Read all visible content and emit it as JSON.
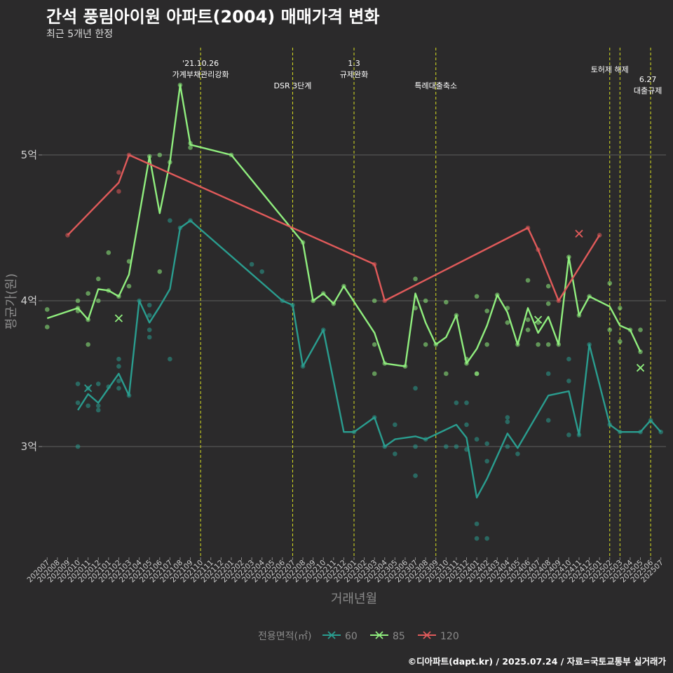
{
  "chart_data": {
    "type": "line",
    "title": "간석 풍림아이원 아파트(2004) 매매가격 변화",
    "subtitle": "최근 5개년 한정",
    "caption": "©디아파트(dapt.kr) / 2025.07.24 / 자료=국토교통부 실거래가",
    "xlabel": "거래년월",
    "ylabel": "평균가(원)",
    "x_categories": [
      "202007",
      "202008",
      "202009",
      "202010",
      "202011",
      "202012",
      "202101",
      "202102",
      "202103",
      "202104",
      "202105",
      "202106",
      "202107",
      "202108",
      "202109",
      "202110",
      "202111",
      "202112",
      "202201",
      "202202",
      "202203",
      "202204",
      "202205",
      "202206",
      "202207",
      "202208",
      "202209",
      "202210",
      "202211",
      "202212",
      "202301",
      "202302",
      "202303",
      "202304",
      "202305",
      "202306",
      "202307",
      "202308",
      "202309",
      "202310",
      "202311",
      "202312",
      "202401",
      "202402",
      "202403",
      "202404",
      "202405",
      "202406",
      "202407",
      "202408",
      "202409",
      "202410",
      "202411",
      "202412",
      "202501",
      "202502",
      "202503",
      "202504",
      "202505",
      "202506",
      "202507"
    ],
    "y_ticks": [
      {
        "value": 3.0,
        "label": "3억"
      },
      {
        "value": 4.0,
        "label": "4억"
      },
      {
        "value": 5.0,
        "label": "5억"
      }
    ],
    "ylim": [
      2.25,
      5.55
    ],
    "grid": "horizontal",
    "legend": {
      "title": "전용면적(㎡)",
      "position": "bottom"
    },
    "series": [
      {
        "name": "60",
        "color": "#2a9d8f",
        "line": [
          [
            "202010",
            3.25
          ],
          [
            "202011",
            3.36
          ],
          [
            "202012",
            3.3
          ],
          [
            "202101",
            3.4
          ],
          [
            "202102",
            3.5
          ],
          [
            "202103",
            3.35
          ],
          [
            "202104",
            4.0
          ],
          [
            "202105",
            3.85
          ],
          [
            "202106",
            3.96
          ],
          [
            "202107",
            4.08
          ],
          [
            "202108",
            4.5
          ],
          [
            "202109",
            4.55
          ],
          [
            "202206",
            4.0
          ],
          [
            "202207",
            3.97
          ],
          [
            "202208",
            3.55
          ],
          [
            "202210",
            3.8
          ],
          [
            "202212",
            3.1
          ],
          [
            "202301",
            3.1
          ],
          [
            "202303",
            3.2
          ],
          [
            "202304",
            3.0
          ],
          [
            "202305",
            3.05
          ],
          [
            "202307",
            3.07
          ],
          [
            "202308",
            3.05
          ],
          [
            "202311",
            3.15
          ],
          [
            "202312",
            3.06
          ],
          [
            "202401",
            2.65
          ],
          [
            "202402",
            2.78
          ],
          [
            "202404",
            3.09
          ],
          [
            "202405",
            2.99
          ],
          [
            "202408",
            3.35
          ],
          [
            "202410",
            3.38
          ],
          [
            "202411",
            3.08
          ],
          [
            "202412",
            3.7
          ],
          [
            "202502",
            3.15
          ],
          [
            "202503",
            3.1
          ],
          [
            "202505",
            3.1
          ],
          [
            "202506",
            3.18
          ],
          [
            "202507",
            3.1
          ]
        ],
        "points": [
          [
            "202010",
            3.43
          ],
          [
            "202010",
            3.3
          ],
          [
            "202010",
            3.0
          ],
          [
            "202011",
            3.28
          ],
          [
            "202011",
            3.4
          ],
          [
            "202012",
            3.43
          ],
          [
            "202012",
            3.25
          ],
          [
            "202012",
            3.28
          ],
          [
            "202101",
            3.41
          ],
          [
            "202102",
            3.6
          ],
          [
            "202102",
            3.55
          ],
          [
            "202102",
            3.45
          ],
          [
            "202102",
            3.4
          ],
          [
            "202103",
            3.35
          ],
          [
            "202104",
            4.0
          ],
          [
            "202105",
            3.8
          ],
          [
            "202105",
            3.75
          ],
          [
            "202105",
            3.97
          ],
          [
            "202105",
            3.9
          ],
          [
            "202107",
            4.55
          ],
          [
            "202107",
            3.6
          ],
          [
            "202108",
            4.5
          ],
          [
            "202109",
            4.55
          ],
          [
            "202203",
            4.25
          ],
          [
            "202204",
            4.2
          ],
          [
            "202206",
            4.0
          ],
          [
            "202207",
            3.97
          ],
          [
            "202208",
            3.55
          ],
          [
            "202210",
            3.8
          ],
          [
            "202301",
            3.1
          ],
          [
            "202303",
            3.2
          ],
          [
            "202304",
            3.0
          ],
          [
            "202305",
            3.15
          ],
          [
            "202305",
            2.95
          ],
          [
            "202307",
            3.4
          ],
          [
            "202307",
            3.0
          ],
          [
            "202307",
            2.8
          ],
          [
            "202308",
            3.05
          ],
          [
            "202310",
            3.0
          ],
          [
            "202311",
            3.3
          ],
          [
            "202311",
            3.0
          ],
          [
            "202312",
            3.3
          ],
          [
            "202312",
            3.15
          ],
          [
            "202312",
            2.98
          ],
          [
            "202401",
            3.05
          ],
          [
            "202401",
            2.47
          ],
          [
            "202401",
            2.37
          ],
          [
            "202402",
            3.02
          ],
          [
            "202402",
            2.9
          ],
          [
            "202402",
            2.37
          ],
          [
            "202404",
            3.2
          ],
          [
            "202404",
            3.17
          ],
          [
            "202404",
            3.0
          ],
          [
            "202405",
            2.95
          ],
          [
            "202408",
            3.5
          ],
          [
            "202408",
            3.18
          ],
          [
            "202410",
            3.6
          ],
          [
            "202410",
            3.45
          ],
          [
            "202410",
            3.08
          ],
          [
            "202411",
            3.08
          ],
          [
            "202412",
            3.7
          ],
          [
            "202502",
            3.15
          ],
          [
            "202503",
            3.1
          ],
          [
            "202505",
            3.1
          ],
          [
            "202506",
            3.18
          ],
          [
            "202507",
            3.1
          ]
        ],
        "crosses": [
          [
            "202011",
            3.4
          ]
        ]
      },
      {
        "name": "85",
        "color": "#90ee7e",
        "line": [
          [
            "202007",
            3.88
          ],
          [
            "202010",
            3.95
          ],
          [
            "202011",
            3.87
          ],
          [
            "202012",
            4.08
          ],
          [
            "202101",
            4.07
          ],
          [
            "202102",
            4.03
          ],
          [
            "202103",
            4.18
          ],
          [
            "202105",
            4.99
          ],
          [
            "202106",
            4.6
          ],
          [
            "202107",
            4.95
          ],
          [
            "202108",
            5.48
          ],
          [
            "202109",
            5.07
          ],
          [
            "202201",
            5.0
          ],
          [
            "202208",
            4.4
          ],
          [
            "202209",
            4.0
          ],
          [
            "202210",
            4.05
          ],
          [
            "202211",
            3.98
          ],
          [
            "202212",
            4.1
          ],
          [
            "202303",
            3.78
          ],
          [
            "202304",
            3.57
          ],
          [
            "202306",
            3.55
          ],
          [
            "202307",
            4.05
          ],
          [
            "202308",
            3.85
          ],
          [
            "202309",
            3.7
          ],
          [
            "202310",
            3.75
          ],
          [
            "202311",
            3.9
          ],
          [
            "202312",
            3.57
          ],
          [
            "202401",
            3.67
          ],
          [
            "202402",
            3.83
          ],
          [
            "202403",
            4.04
          ],
          [
            "202404",
            3.92
          ],
          [
            "202405",
            3.7
          ],
          [
            "202406",
            3.95
          ],
          [
            "202407",
            3.78
          ],
          [
            "202408",
            3.89
          ],
          [
            "202409",
            3.7
          ],
          [
            "202410",
            4.3
          ],
          [
            "202411",
            3.9
          ],
          [
            "202412",
            4.03
          ],
          [
            "202502",
            3.96
          ],
          [
            "202503",
            3.83
          ],
          [
            "202504",
            3.8
          ],
          [
            "202505",
            3.65
          ]
        ],
        "points": [
          [
            "202007",
            3.94
          ],
          [
            "202007",
            3.82
          ],
          [
            "202010",
            3.95
          ],
          [
            "202010",
            4.0
          ],
          [
            "202010",
            3.93
          ],
          [
            "202011",
            3.7
          ],
          [
            "202011",
            3.87
          ],
          [
            "202011",
            4.05
          ],
          [
            "202012",
            4.15
          ],
          [
            "202012",
            4.0
          ],
          [
            "202101",
            4.33
          ],
          [
            "202101",
            4.07
          ],
          [
            "202102",
            4.03
          ],
          [
            "202103",
            4.27
          ],
          [
            "202103",
            4.1
          ],
          [
            "202105",
            4.99
          ],
          [
            "202106",
            5.0
          ],
          [
            "202106",
            4.2
          ],
          [
            "202107",
            4.95
          ],
          [
            "202108",
            5.48
          ],
          [
            "202109",
            5.08
          ],
          [
            "202109",
            5.05
          ],
          [
            "202201",
            5.0
          ],
          [
            "202208",
            4.4
          ],
          [
            "202209",
            4.0
          ],
          [
            "202210",
            4.05
          ],
          [
            "202211",
            3.98
          ],
          [
            "202212",
            4.1
          ],
          [
            "202303",
            4.0
          ],
          [
            "202303",
            3.7
          ],
          [
            "202303",
            3.5
          ],
          [
            "202304",
            3.57
          ],
          [
            "202306",
            3.55
          ],
          [
            "202307",
            4.15
          ],
          [
            "202307",
            3.95
          ],
          [
            "202308",
            4.0
          ],
          [
            "202308",
            3.7
          ],
          [
            "202309",
            3.7
          ],
          [
            "202310",
            3.99
          ],
          [
            "202310",
            3.5
          ],
          [
            "202311",
            3.9
          ],
          [
            "202312",
            3.6
          ],
          [
            "202312",
            3.57
          ],
          [
            "202401",
            4.03
          ],
          [
            "202401",
            3.5
          ],
          [
            "202401",
            3.5
          ],
          [
            "202402",
            3.93
          ],
          [
            "202402",
            3.7
          ],
          [
            "202403",
            4.04
          ],
          [
            "202404",
            3.95
          ],
          [
            "202404",
            3.85
          ],
          [
            "202405",
            3.7
          ],
          [
            "202406",
            4.14
          ],
          [
            "202406",
            3.8
          ],
          [
            "202406",
            3.87
          ],
          [
            "202407",
            3.85
          ],
          [
            "202407",
            3.7
          ],
          [
            "202408",
            4.1
          ],
          [
            "202408",
            3.98
          ],
          [
            "202408",
            3.7
          ],
          [
            "202409",
            3.7
          ],
          [
            "202410",
            4.3
          ],
          [
            "202411",
            3.9
          ],
          [
            "202412",
            4.03
          ],
          [
            "202502",
            4.12
          ],
          [
            "202502",
            3.8
          ],
          [
            "202503",
            3.95
          ],
          [
            "202503",
            3.72
          ],
          [
            "202504",
            3.8
          ],
          [
            "202505",
            3.8
          ],
          [
            "202505",
            3.65
          ]
        ],
        "crosses": [
          [
            "202102",
            3.88
          ],
          [
            "202407",
            3.87
          ],
          [
            "202505",
            3.54
          ]
        ]
      },
      {
        "name": "120",
        "color": "#e05a5a",
        "line": [
          [
            "202009",
            4.45
          ],
          [
            "202102",
            4.81
          ],
          [
            "202103",
            5.0
          ],
          [
            "202303",
            4.25
          ],
          [
            "202304",
            4.0
          ],
          [
            "202406",
            4.5
          ],
          [
            "202407",
            4.35
          ],
          [
            "202409",
            4.0
          ],
          [
            "202501",
            4.45
          ]
        ],
        "points": [
          [
            "202009",
            4.45
          ],
          [
            "202102",
            4.88
          ],
          [
            "202102",
            4.75
          ],
          [
            "202103",
            5.0
          ],
          [
            "202303",
            4.25
          ],
          [
            "202304",
            4.0
          ],
          [
            "202406",
            4.5
          ],
          [
            "202407",
            4.35
          ],
          [
            "202409",
            4.0
          ],
          [
            "202501",
            4.45
          ]
        ],
        "crosses": [
          [
            "202411",
            4.46
          ]
        ]
      }
    ],
    "annotations": [
      {
        "x": "202110",
        "lines": [
          "'21.10.26",
          "가계부채관리강화"
        ]
      },
      {
        "x": "202207",
        "lines": [
          "DSR 3단계"
        ]
      },
      {
        "x": "202301",
        "lines": [
          "1.3",
          "규제완화"
        ]
      },
      {
        "x": "202309",
        "lines": [
          "특례대출축소"
        ]
      },
      {
        "x": "202502",
        "lines": [
          "토허제 해제"
        ]
      },
      {
        "x": "202503",
        "lines": []
      },
      {
        "x": "202506",
        "lines": [
          "6.27",
          "대출규제"
        ]
      }
    ]
  }
}
